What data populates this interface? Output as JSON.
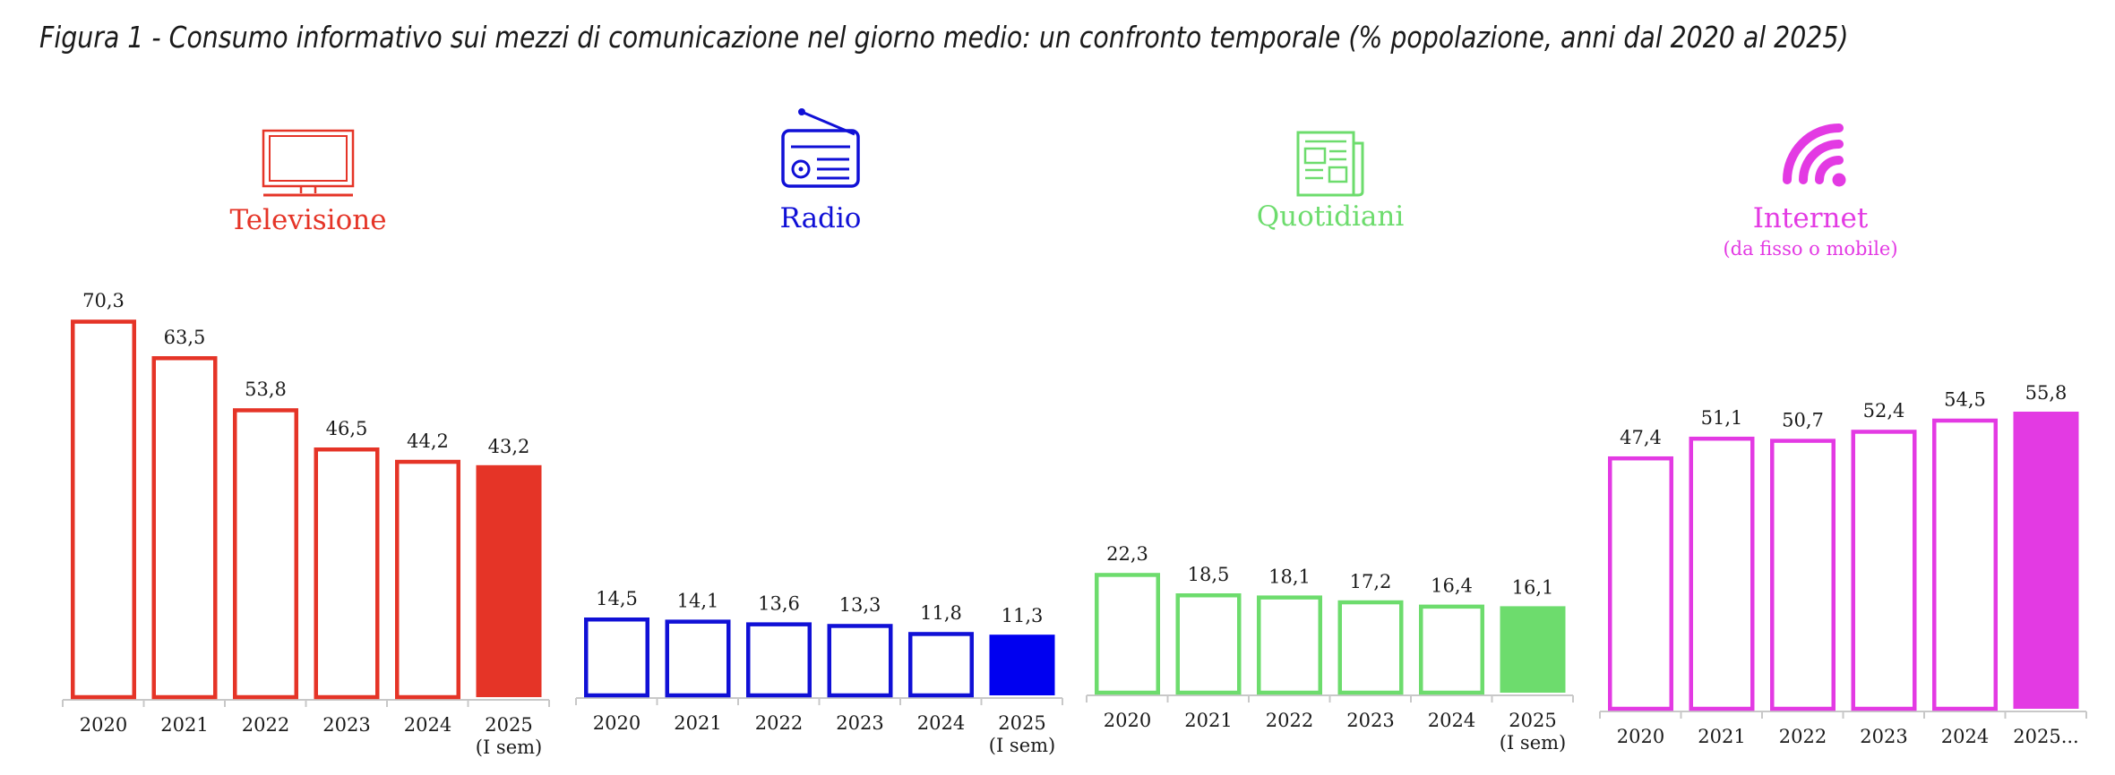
{
  "title": "Figura 1 - Consumo informativo sui mezzi di comunicazione nel giorno medio: un confronto temporale (% popolazione, anni dal 2020 al 2025)",
  "chart_data": [
    {
      "type": "bar",
      "name": "Televisione",
      "subtitle": "",
      "icon": "tv-icon",
      "color": "#e53427",
      "categories": [
        "2020",
        "2021",
        "2022",
        "2023",
        "2024",
        "2025"
      ],
      "category_notes": [
        "",
        "",
        "",
        "",
        "",
        "(I sem)"
      ],
      "values": [
        70.3,
        63.5,
        53.8,
        46.5,
        44.2,
        43.2
      ],
      "labels": [
        "70,3",
        "63,5",
        "53,8",
        "46,5",
        "44,2",
        "43,2"
      ],
      "filled_last": true
    },
    {
      "type": "bar",
      "name": "Radio",
      "subtitle": "",
      "icon": "radio-icon",
      "color": "#1010d6",
      "fill_color": "#0000f0",
      "categories": [
        "2020",
        "2021",
        "2022",
        "2023",
        "2024",
        "2025"
      ],
      "category_notes": [
        "",
        "",
        "",
        "",
        "",
        "(I sem)"
      ],
      "values": [
        14.5,
        14.1,
        13.6,
        13.3,
        11.8,
        11.3
      ],
      "labels": [
        "14,5",
        "14,1",
        "13,6",
        "13,3",
        "11,8",
        "11,3"
      ],
      "filled_last": true
    },
    {
      "type": "bar",
      "name": "Quotidiani",
      "subtitle": "",
      "icon": "newspaper-icon",
      "color": "#6ddc6d",
      "categories": [
        "2020",
        "2021",
        "2022",
        "2023",
        "2024",
        "2025"
      ],
      "category_notes": [
        "",
        "",
        "",
        "",
        "",
        "(I sem)"
      ],
      "values": [
        22.3,
        18.5,
        18.1,
        17.2,
        16.4,
        16.1
      ],
      "labels": [
        "22,3",
        "18,5",
        "18,1",
        "17,2",
        "16,4",
        "16,1"
      ],
      "filled_last": true
    },
    {
      "type": "bar",
      "name": "Internet",
      "subtitle": "(da fisso o mobile)",
      "icon": "wifi-icon",
      "color": "#e33ae3",
      "categories": [
        "2020",
        "2021",
        "2022",
        "2023",
        "2024",
        "2025..."
      ],
      "category_notes": [
        "",
        "",
        "",
        "",
        "",
        ""
      ],
      "values": [
        47.4,
        51.1,
        50.7,
        52.4,
        54.5,
        55.8
      ],
      "labels": [
        "47,4",
        "51,1",
        "50,7",
        "52,4",
        "54,5",
        "55,8"
      ],
      "filled_last": true
    }
  ]
}
